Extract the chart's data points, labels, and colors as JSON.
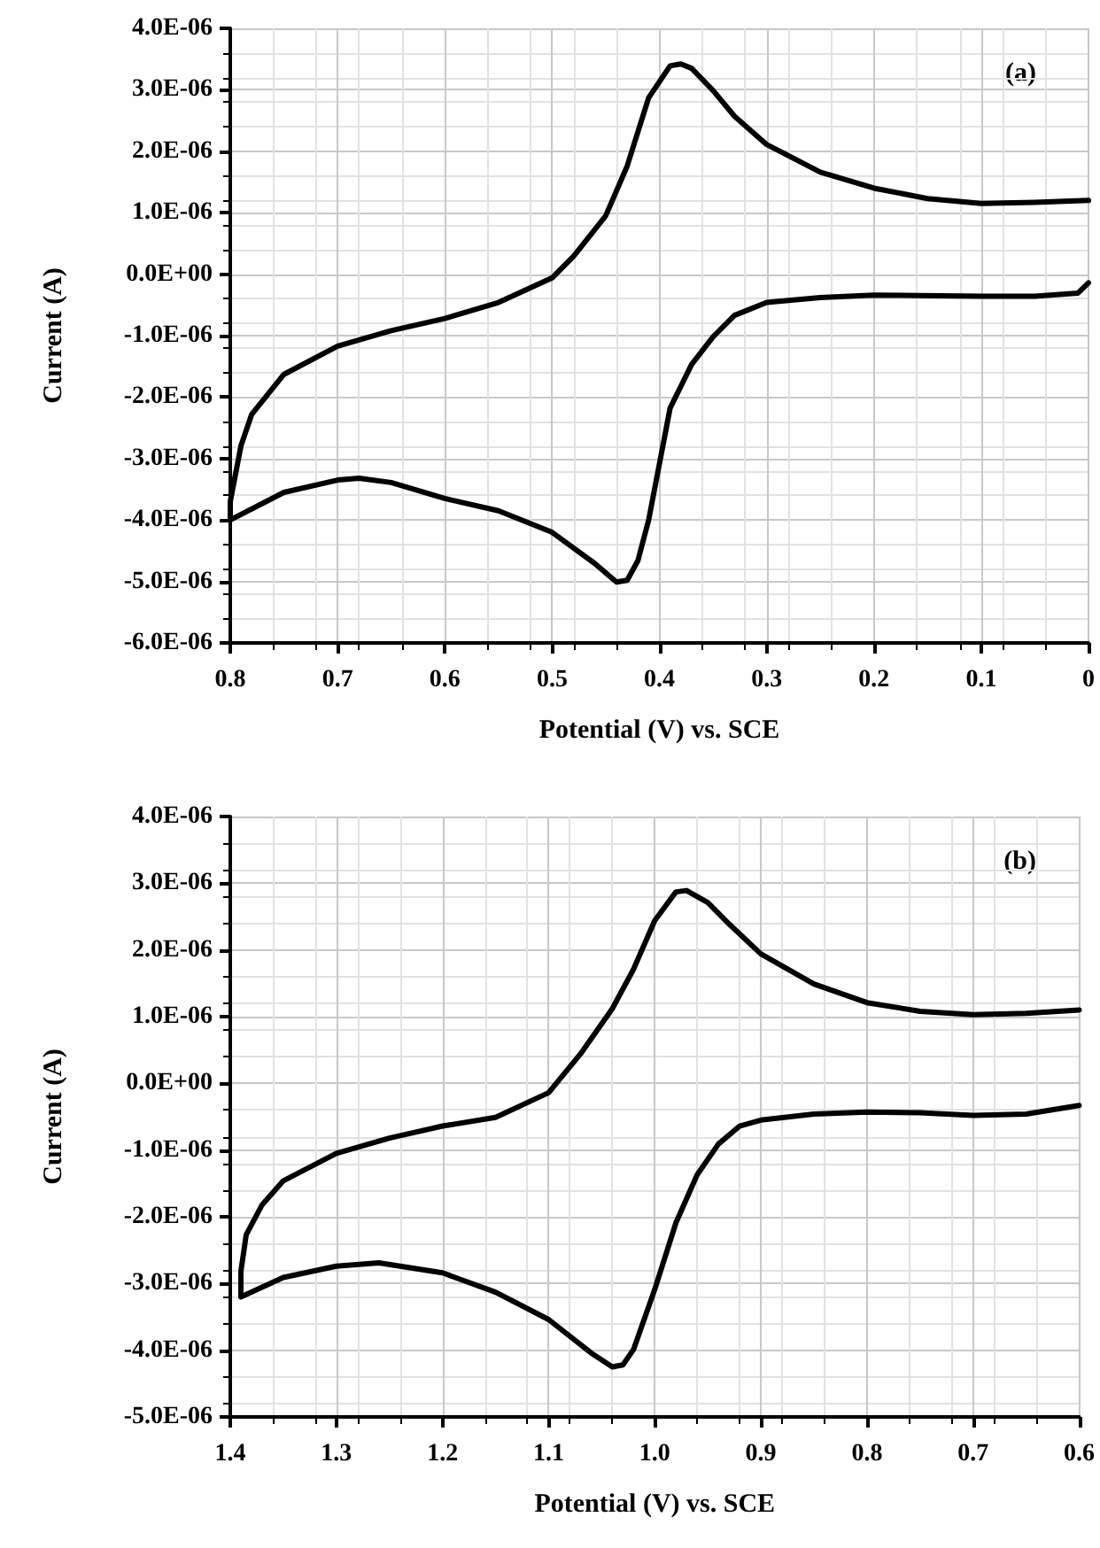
{
  "chart_data": [
    {
      "type": "line",
      "annotations": [
        "(a)"
      ],
      "xlabel": "Potential (V) vs. SCE",
      "ylabel": "Current (A)",
      "xlim": [
        0.8,
        0
      ],
      "xticks": [
        0.8,
        0.7,
        0.6,
        0.5,
        0.4,
        0.3,
        0.2,
        0.1,
        0
      ],
      "ylim": [
        -6e-06,
        4e-06
      ],
      "yticks": [
        {
          "value": -6e-06,
          "label": "-6.0E-06"
        },
        {
          "value": -5e-06,
          "label": "-5.0E-06"
        },
        {
          "value": -4e-06,
          "label": "-4.0E-06"
        },
        {
          "value": -3e-06,
          "label": "-3.0E-06"
        },
        {
          "value": -2e-06,
          "label": "-2.0E-06"
        },
        {
          "value": -1e-06,
          "label": "-1.0E-06"
        },
        {
          "value": 0,
          "label": "0.0E+00"
        },
        {
          "value": 1e-06,
          "label": "1.0E-06"
        },
        {
          "value": 2e-06,
          "label": "2.0E-06"
        },
        {
          "value": 3e-06,
          "label": "3.0E-06"
        },
        {
          "value": 4e-06,
          "label": "4.0E-06"
        }
      ],
      "grid": true,
      "marker": "none",
      "line_style": "solid",
      "series": [
        {
          "color": "#000000",
          "x": [
            0,
            0.05,
            0.1,
            0.15,
            0.2,
            0.25,
            0.3,
            0.33,
            0.35,
            0.37,
            0.38,
            0.39,
            0.41,
            0.43,
            0.45,
            0.48,
            0.5,
            0.55,
            0.6,
            0.65,
            0.7,
            0.75,
            0.78,
            0.79,
            0.8,
            0.8,
            0.75,
            0.7,
            0.68,
            0.65,
            0.6,
            0.55,
            0.5,
            0.46,
            0.44,
            0.43,
            0.42,
            0.41,
            0.4,
            0.39,
            0.37,
            0.35,
            0.33,
            0.3,
            0.25,
            0.2,
            0.1,
            0.05,
            0.01,
            0
          ],
          "values": [
            1.2e-06,
            1.17e-06,
            1.15e-06,
            1.23e-06,
            1.4e-06,
            1.66e-06,
            2.11e-06,
            2.57e-06,
            2.99e-06,
            3.35e-06,
            3.42e-06,
            3.39e-06,
            2.87e-06,
            1.76e-06,
            9.5e-07,
            2.9e-07,
            -6e-08,
            -4.6e-07,
            -7.2e-07,
            -9.2e-07,
            -1.17e-06,
            -1.63e-06,
            -2.28e-06,
            -2.79e-06,
            -3.7e-06,
            -4e-06,
            -3.55e-06,
            -3.35e-06,
            -3.32e-06,
            -3.39e-06,
            -3.65e-06,
            -3.85e-06,
            -4.2e-06,
            -4.71e-06,
            -5.01e-06,
            -4.98e-06,
            -4.66e-06,
            -4e-06,
            -3.09e-06,
            -2.18e-06,
            -1.47e-06,
            -1.02e-06,
            -6.7e-07,
            -4.6e-07,
            -3.8e-07,
            -3.4e-07,
            -3.6e-07,
            -3.6e-07,
            -3.1e-07,
            -1.4e-07
          ]
        }
      ]
    },
    {
      "type": "line",
      "annotations": [
        "(b)"
      ],
      "xlabel": "Potential (V) vs. SCE",
      "ylabel": "Current (A)",
      "xlim": [
        1.4,
        0.6
      ],
      "xticks": [
        {
          "value": 1.4,
          "label": "1.4"
        },
        {
          "value": 1.3,
          "label": "1.3"
        },
        {
          "value": 1.2,
          "label": "1.2"
        },
        {
          "value": 1.1,
          "label": "1.1"
        },
        {
          "value": 1.0,
          "label": "1.0"
        },
        {
          "value": 0.9,
          "label": "0.9"
        },
        {
          "value": 0.8,
          "label": "0.8"
        },
        {
          "value": 0.7,
          "label": "0.7"
        },
        {
          "value": 0.6,
          "label": "0.6"
        }
      ],
      "ylim": [
        -5e-06,
        4e-06
      ],
      "yticks": [
        {
          "value": -5e-06,
          "label": "-5.0E-06"
        },
        {
          "value": -4e-06,
          "label": "-4.0E-06"
        },
        {
          "value": -3e-06,
          "label": "-3.0E-06"
        },
        {
          "value": -2e-06,
          "label": "-2.0E-06"
        },
        {
          "value": -1e-06,
          "label": "-1.0E-06"
        },
        {
          "value": 0,
          "label": "0.0E+00"
        },
        {
          "value": 1e-06,
          "label": "1.0E-06"
        },
        {
          "value": 2e-06,
          "label": "2.0E-06"
        },
        {
          "value": 3e-06,
          "label": "3.0E-06"
        },
        {
          "value": 4e-06,
          "label": "4.0E-06"
        }
      ],
      "grid": true,
      "marker": "none",
      "line_style": "solid",
      "series": [
        {
          "color": "#000000",
          "x": [
            0.6,
            0.65,
            0.7,
            0.75,
            0.8,
            0.85,
            0.9,
            0.93,
            0.95,
            0.97,
            0.98,
            1.0,
            1.02,
            1.04,
            1.07,
            1.1,
            1.15,
            1.2,
            1.25,
            1.3,
            1.35,
            1.37,
            1.385,
            1.39,
            1.39,
            1.35,
            1.3,
            1.26,
            1.2,
            1.15,
            1.1,
            1.06,
            1.04,
            1.03,
            1.02,
            1.0,
            0.98,
            0.96,
            0.94,
            0.92,
            0.9,
            0.85,
            0.8,
            0.75,
            0.7,
            0.65,
            0.6
          ],
          "values": [
            1.1e-06,
            1.05e-06,
            1.03e-06,
            1.08e-06,
            1.21e-06,
            1.49e-06,
            1.94e-06,
            2.39e-06,
            2.71e-06,
            2.89e-06,
            2.87e-06,
            2.44e-06,
            1.71e-06,
            1.12e-06,
            4.4e-07,
            -1.4e-07,
            -5.1e-07,
            -6.4e-07,
            -8.2e-07,
            -1.05e-06,
            -1.46e-06,
            -1.82e-06,
            -2.27e-06,
            -2.82e-06,
            -3.2e-06,
            -2.91e-06,
            -2.74e-06,
            -2.69e-06,
            -2.84e-06,
            -3.13e-06,
            -3.54e-06,
            -4.04e-06,
            -4.25e-06,
            -4.22e-06,
            -3.99e-06,
            -3.09e-06,
            -2.09e-06,
            -1.37e-06,
            -9.1e-07,
            -6.4e-07,
            -5.5e-07,
            -4.6e-07,
            -4.3e-07,
            -4.4e-07,
            -4.8e-07,
            -4.6e-07,
            -3.3e-07
          ]
        }
      ]
    }
  ]
}
